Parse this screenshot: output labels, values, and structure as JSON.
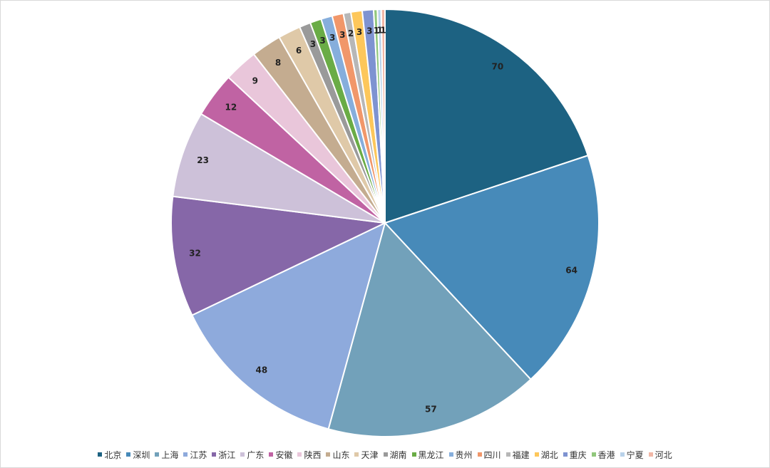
{
  "chart_data": {
    "type": "pie",
    "title": "",
    "categories": [
      "北京",
      "深圳",
      "上海",
      "江苏",
      "浙江",
      "广东",
      "安徽",
      "陕西",
      "山东",
      "天津",
      "湖南",
      "黑龙江",
      "贵州",
      "四川",
      "福建",
      "湖北",
      "重庆",
      "香港",
      "宁夏",
      "河北"
    ],
    "values": [
      70,
      64,
      57,
      48,
      32,
      23,
      12,
      9,
      8,
      6,
      3,
      3,
      3,
      3,
      2,
      3,
      3,
      1,
      1,
      1
    ],
    "colors": [
      "#1d6282",
      "#478ab9",
      "#72a1ba",
      "#8eaadc",
      "#8667a8",
      "#cdc1d9",
      "#c063a3",
      "#e9c6da",
      "#c4ac90",
      "#dfc9a8",
      "#9a9a9a",
      "#6aac46",
      "#86aedc",
      "#f1976a",
      "#b7b7b7",
      "#fdc75b",
      "#7e93d1",
      "#91c77c",
      "#b9d2ea",
      "#f1b7a6"
    ],
    "label_start_angle_deg": 0,
    "legend_position": "bottom"
  }
}
